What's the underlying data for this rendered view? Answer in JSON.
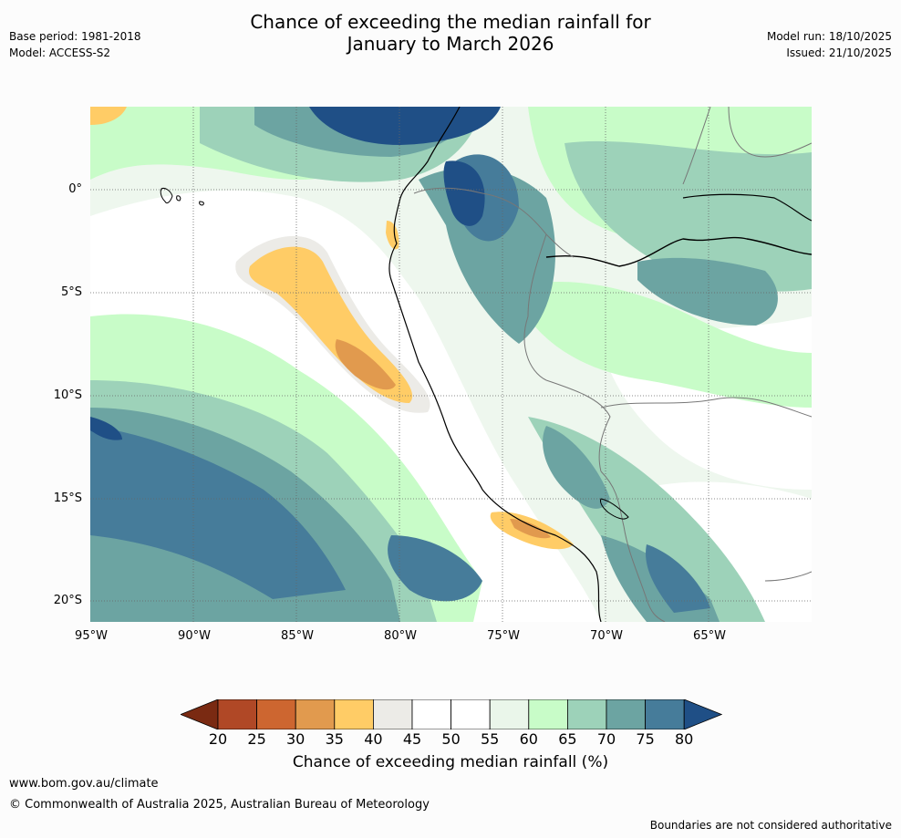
{
  "header": {
    "title_line1": "Chance of exceeding the median rainfall for",
    "title_line2": "January to March 2026",
    "base_period": "Base period: 1981-2018",
    "model": "Model: ACCESS-S2",
    "model_run": "Model run: 18/10/2025",
    "issued": "Issued: 21/10/2025"
  },
  "map": {
    "lat_labels": [
      "0°",
      "5°S",
      "10°S",
      "15°S",
      "20°S"
    ],
    "lon_labels": [
      "95°W",
      "90°W",
      "85°W",
      "80°W",
      "75°W",
      "70°W",
      "65°W"
    ]
  },
  "legend": {
    "ticks": [
      "20",
      "25",
      "30",
      "35",
      "40",
      "45",
      "50",
      "55",
      "60",
      "65",
      "70",
      "75",
      "80"
    ],
    "colors": [
      "#7a2a12",
      "#b04826",
      "#cd6630",
      "#e19a4e",
      "#ffcc66",
      "#ecebe7",
      "#ffffff",
      "#ffffff",
      "#eaf6ea",
      "#c8fcc8",
      "#9dd2b9",
      "#6ca4a2",
      "#467c9a",
      "#1f4f86"
    ],
    "title": "Chance of exceeding median rainfall (%)"
  },
  "footer": {
    "url": "www.bom.gov.au/climate",
    "copyright": "© Commonwealth of Australia 2025, Australian Bureau of Meteorology",
    "disclaimer": "Boundaries are not considered authoritative"
  }
}
